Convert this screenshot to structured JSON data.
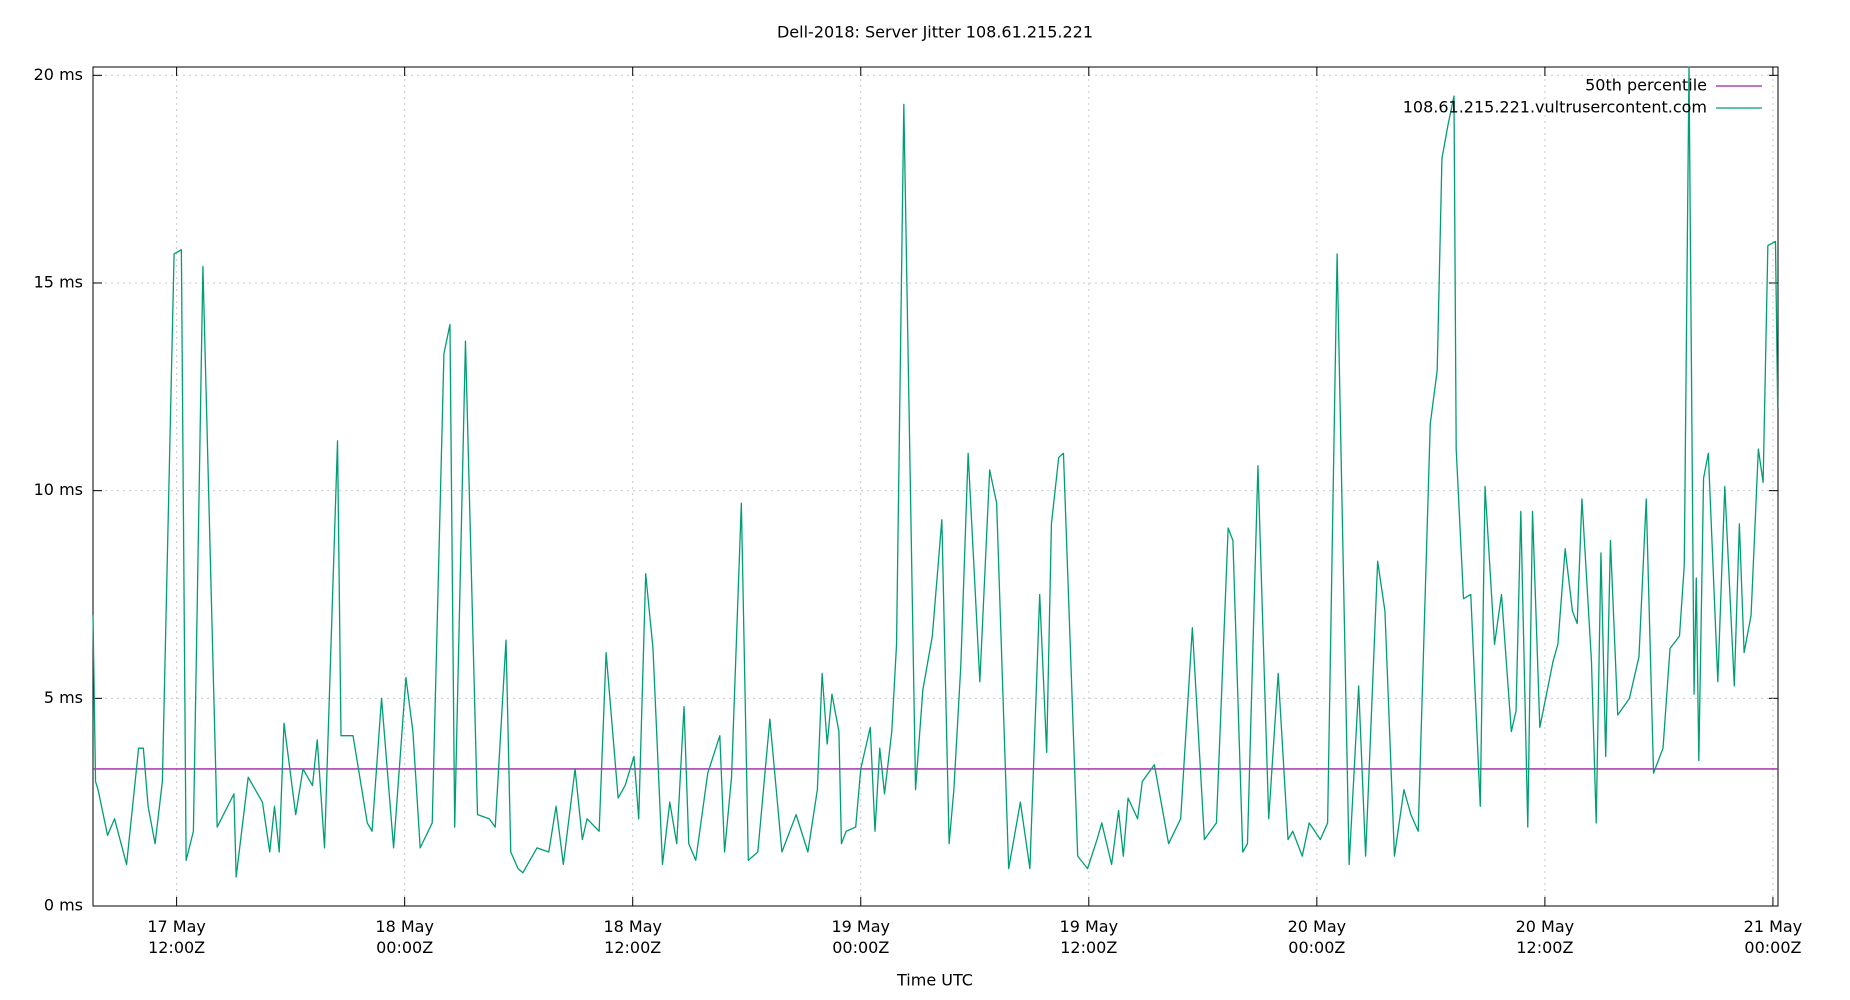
{
  "chart_data": {
    "type": "line",
    "title": "Dell-2018: Server Jitter 108.61.215.221",
    "x_label": "Time UTC",
    "xlim": [
      "17 May 07:36Z",
      "21 May 00:16Z"
    ],
    "xticks": [
      {
        "value": "17 May 12:00Z",
        "label": [
          "17 May",
          "12:00Z"
        ]
      },
      {
        "value": "18 May 00:00Z",
        "label": [
          "18 May",
          "00:00Z"
        ]
      },
      {
        "value": "18 May 12:00Z",
        "label": [
          "18 May",
          "12:00Z"
        ]
      },
      {
        "value": "19 May 00:00Z",
        "label": [
          "19 May",
          "00:00Z"
        ]
      },
      {
        "value": "19 May 12:00Z",
        "label": [
          "19 May",
          "12:00Z"
        ]
      },
      {
        "value": "20 May 00:00Z",
        "label": [
          "20 May",
          "00:00Z"
        ]
      },
      {
        "value": "20 May 12:00Z",
        "label": [
          "20 May",
          "12:00Z"
        ]
      },
      {
        "value": "21 May 00:00Z",
        "label": [
          "21 May",
          "00:00Z"
        ]
      }
    ],
    "ylim": [
      0,
      20.2
    ],
    "yticks": [
      {
        "value": 0,
        "label": "0 ms"
      },
      {
        "value": 5,
        "label": "5 ms"
      },
      {
        "value": 10,
        "label": "10 ms"
      },
      {
        "value": 15,
        "label": "15 ms"
      },
      {
        "value": 20,
        "label": "20 ms"
      }
    ],
    "grid": true,
    "legend": "top-right",
    "series": [
      {
        "name": "50th percentile",
        "color": "#a0209f",
        "values": [
          3.3
        ]
      },
      {
        "name": "108.61.215.221.vultrusercontent.com",
        "color": "#009e73",
        "x": [
          "17 May 07:36Z",
          "17 May 07:44Z",
          "17 May 07:52Z",
          "17 May 08:22Z",
          "17 May 08:44Z",
          "17 May 09:22Z",
          "17 May 10:00Z",
          "17 May 10:15Z",
          "17 May 10:30Z",
          "17 May 10:52Z",
          "17 May 11:15Z",
          "17 May 11:52Z",
          "17 May 12:15Z",
          "17 May 12:30Z",
          "17 May 12:53Z",
          "17 May 13:23Z",
          "17 May 14:08Z",
          "17 May 15:01Z",
          "17 May 15:08Z",
          "17 May 15:46Z",
          "17 May 16:31Z",
          "17 May 16:54Z",
          "17 May 17:09Z",
          "17 May 17:24Z",
          "17 May 17:39Z",
          "17 May 18:16Z",
          "17 May 18:39Z",
          "17 May 19:09Z",
          "17 May 19:24Z",
          "17 May 19:47Z",
          "17 May 20:28Z",
          "17 May 20:39Z",
          "17 May 21:17Z",
          "17 May 22:02Z",
          "17 May 22:17Z",
          "17 May 22:47Z",
          "17 May 23:25Z",
          "18 May 00:04Z",
          "18 May 00:26Z",
          "18 May 00:49Z",
          "18 May 01:27Z",
          "18 May 02:04Z",
          "18 May 02:23Z",
          "18 May 02:38Z",
          "18 May 03:12Z",
          "18 May 03:50Z",
          "18 May 04:27Z",
          "18 May 04:46Z",
          "18 May 05:20Z",
          "18 May 05:35Z",
          "18 May 05:58Z",
          "18 May 06:13Z",
          "18 May 06:58Z",
          "18 May 07:35Z",
          "18 May 07:58Z",
          "18 May 08:21Z",
          "18 May 08:58Z",
          "18 May 09:21Z",
          "18 May 09:36Z",
          "18 May 10:14Z",
          "18 May 10:36Z",
          "18 May 11:14Z",
          "18 May 11:36Z",
          "18 May 12:04Z",
          "18 May 12:19Z",
          "18 May 12:41Z",
          "18 May 13:04Z",
          "18 May 13:34Z",
          "18 May 13:57Z",
          "18 May 14:19Z",
          "18 May 14:42Z",
          "18 May 14:57Z",
          "18 May 15:19Z",
          "18 May 15:57Z",
          "18 May 16:35Z",
          "18 May 16:50Z",
          "18 May 17:12Z",
          "18 May 17:43Z",
          "18 May 18:05Z",
          "18 May 18:35Z",
          "18 May 19:13Z",
          "18 May 19:51Z",
          "18 May 20:36Z",
          "18 May 21:13Z",
          "18 May 21:43Z",
          "18 May 21:58Z",
          "18 May 22:14Z",
          "18 May 22:29Z",
          "18 May 22:51Z",
          "18 May 22:59Z",
          "18 May 23:14Z",
          "18 May 23:44Z",
          "19 May 00:00Z",
          "19 May 00:30Z",
          "19 May 00:45Z",
          "19 May 01:00Z",
          "19 May 01:15Z",
          "19 May 01:38Z",
          "19 May 01:53Z",
          "19 May 02:16Z",
          "19 May 02:53Z",
          "19 May 03:16Z",
          "19 May 03:46Z",
          "19 May 04:16Z",
          "19 May 04:39Z",
          "19 May 04:54Z",
          "19 May 05:16Z",
          "19 May 05:39Z",
          "19 May 06:16Z",
          "19 May 06:47Z",
          "19 May 07:09Z",
          "19 May 07:47Z",
          "19 May 08:24Z",
          "19 May 08:54Z",
          "19 May 09:25Z",
          "19 May 09:47Z",
          "19 May 10:02Z",
          "19 May 10:25Z",
          "19 May 10:40Z",
          "19 May 11:25Z",
          "19 May 11:56Z",
          "19 May 12:26Z",
          "19 May 12:41Z",
          "19 May 13:12Z",
          "19 May 13:34Z",
          "19 May 13:49Z",
          "19 May 14:04Z",
          "19 May 14:34Z",
          "19 May 14:49Z",
          "19 May 15:27Z",
          "19 May 16:12Z",
          "19 May 16:50Z",
          "19 May 17:27Z",
          "19 May 18:05Z",
          "19 May 18:43Z",
          "19 May 19:20Z",
          "19 May 19:35Z",
          "19 May 20:06Z",
          "19 May 20:21Z",
          "19 May 20:54Z",
          "19 May 21:28Z",
          "19 May 21:58Z",
          "19 May 22:29Z",
          "19 May 22:44Z",
          "19 May 23:14Z",
          "19 May 23:36Z",
          "20 May 00:11Z",
          "20 May 00:34Z",
          "20 May 01:04Z",
          "20 May 01:42Z",
          "20 May 02:12Z",
          "20 May 02:34Z",
          "20 May 03:12Z",
          "20 May 03:35Z",
          "20 May 04:05Z",
          "20 May 04:35Z",
          "20 May 04:57Z",
          "20 May 05:20Z",
          "20 May 05:58Z",
          "20 May 06:20Z",
          "20 May 06:35Z",
          "20 May 06:54Z",
          "20 May 07:13Z",
          "20 May 07:20Z",
          "20 May 07:43Z",
          "20 May 08:06Z",
          "20 May 08:36Z",
          "20 May 08:51Z",
          "20 May 09:21Z",
          "20 May 09:43Z",
          "20 May 10:14Z",
          "20 May 10:29Z",
          "20 May 10:44Z",
          "20 May 11:06Z",
          "20 May 11:21Z",
          "20 May 11:44Z",
          "20 May 12:26Z",
          "20 May 12:41Z",
          "20 May 13:04Z",
          "20 May 13:27Z",
          "20 May 13:42Z",
          "20 May 13:57Z",
          "20 May 14:27Z",
          "20 May 14:42Z",
          "20 May 14:57Z",
          "20 May 15:12Z",
          "20 May 15:27Z",
          "20 May 15:50Z",
          "20 May 16:27Z",
          "20 May 16:57Z",
          "20 May 17:20Z",
          "20 May 17:43Z",
          "20 May 18:13Z",
          "20 May 18:35Z",
          "20 May 19:05Z",
          "20 May 19:20Z",
          "20 May 19:35Z",
          "20 May 19:51Z",
          "20 May 19:58Z",
          "20 May 20:06Z",
          "20 May 20:21Z",
          "20 May 20:36Z",
          "20 May 21:06Z",
          "20 May 21:28Z",
          "20 May 21:58Z",
          "20 May 22:14Z",
          "20 May 22:29Z",
          "20 May 22:51Z",
          "20 May 23:14Z",
          "20 May 23:29Z",
          "20 May 23:44Z",
          "21 May 00:08Z",
          "21 May 00:15Z"
        ],
        "values": [
          7,
          3,
          2.8,
          1.7,
          2.1,
          1.0,
          3.8,
          3.8,
          2.4,
          1.5,
          3,
          15.7,
          15.8,
          1.1,
          1.8,
          15.4,
          1.9,
          2.7,
          0.7,
          3.1,
          2.5,
          1.3,
          2.4,
          1.3,
          4.4,
          2.2,
          3.3,
          2.9,
          4.0,
          1.4,
          11.2,
          4.1,
          4.1,
          2,
          1.8,
          5,
          1.4,
          5.5,
          4.2,
          1.4,
          2,
          13.3,
          14,
          1.9,
          13.6,
          2.2,
          2.1,
          1.9,
          6.4,
          1.3,
          0.9,
          0.8,
          1.4,
          1.3,
          2.4,
          1,
          3.3,
          1.6,
          2.1,
          1.8,
          6.1,
          2.6,
          2.9,
          3.6,
          2.1,
          8,
          6.2,
          1,
          2.5,
          1.5,
          4.8,
          1.5,
          1.1,
          3.2,
          4.1,
          1.3,
          3.1,
          9.7,
          1.1,
          1.3,
          4.5,
          1.3,
          2.2,
          1.3,
          2.8,
          5.6,
          3.9,
          5.1,
          4.2,
          1.5,
          1.8,
          1.9,
          3.3,
          4.3,
          1.8,
          3.8,
          2.7,
          4.2,
          6.3,
          19.3,
          2.8,
          5.2,
          6.5,
          9.3,
          1.5,
          2.8,
          5.8,
          10.9,
          5.4,
          10.5,
          9.7,
          0.9,
          2.5,
          0.9,
          7.5,
          3.7,
          9.2,
          10.8,
          10.9,
          1.2,
          0.9,
          1.6,
          2,
          1,
          2.3,
          1.2,
          2.6,
          2.1,
          3.0,
          3.4,
          1.5,
          2.1,
          6.7,
          1.6,
          2,
          9.1,
          8.8,
          1.3,
          1.5,
          10.6,
          2.1,
          5.6,
          1.6,
          1.8,
          1.2,
          2,
          1.6,
          2,
          15.7,
          1,
          5.3,
          1.2,
          8.3,
          7.1,
          1.2,
          2.8,
          2.2,
          1.8,
          11.6,
          12.9,
          18,
          18.8,
          19.5,
          11,
          7.4,
          7.5,
          2.4,
          10.1,
          6.3,
          7.5,
          4.2,
          4.7,
          9.5,
          1.9,
          9.5,
          4.3,
          5.9,
          6.3,
          8.6,
          7.1,
          6.8,
          9.8,
          5.9,
          2.0,
          8.5,
          3.6,
          8.8,
          4.6,
          5,
          6,
          9.8,
          3.2,
          3.8,
          6.2,
          6.5,
          8.2,
          20.2,
          5.1,
          7.9,
          3.5,
          10.3,
          10.9,
          5.4,
          10.1,
          5.3,
          9.2,
          6.1,
          7,
          11,
          10.2,
          15.9,
          16,
          12
        ]
      }
    ]
  }
}
